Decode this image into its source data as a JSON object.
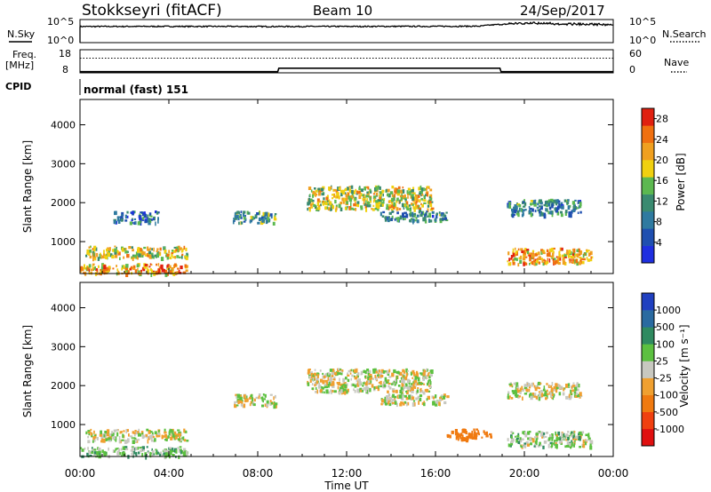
{
  "header": {
    "radar": "Stokkseyri (fitACF)",
    "beam": "Beam 10",
    "date": "24/Sep/2017"
  },
  "noise_panel": {
    "left_label": "N.Sky",
    "right_label": "N.Search",
    "left_ticks": [
      "10^5",
      "10^0"
    ],
    "right_ticks": [
      "10^5",
      "10^0"
    ]
  },
  "freq_panel": {
    "left_label_line1": "Freq.",
    "left_label_line2": "[MHz]",
    "right_label": "Nave",
    "left_ticks": [
      "18",
      "8"
    ],
    "right_ticks": [
      "60",
      "0"
    ]
  },
  "cpid": {
    "label": "CPID",
    "value": "normal (fast) 151"
  },
  "power_panel": {
    "ylabel": "Slant Range [km]",
    "yticks": [
      "1000",
      "2000",
      "3000",
      "4000"
    ],
    "colorbar_label": "Power [dB]",
    "colorbar_ticks": [
      "4",
      "8",
      "12",
      "16",
      "20",
      "24",
      "28"
    ],
    "colors": [
      "#1f2fe0",
      "#1f4fb0",
      "#2f7aa0",
      "#3a8a70",
      "#5cb850",
      "#f0d010",
      "#f0a020",
      "#f07010",
      "#e02010"
    ]
  },
  "velocity_panel": {
    "ylabel": "Slant Range [km]",
    "yticks": [
      "1000",
      "2000",
      "3000",
      "4000"
    ],
    "colorbar_label": "Velocity [m s⁻¹]",
    "colorbar_ticks": [
      "1000",
      "500",
      "100",
      "25",
      "-25",
      "-100",
      "-500",
      "-1000"
    ],
    "colors": [
      "#2040c0",
      "#2a6aa0",
      "#2f8a60",
      "#5cc040",
      "#c8c8c0",
      "#f0a030",
      "#f07a10",
      "#f04010",
      "#e01010"
    ]
  },
  "time_axis": {
    "label": "Time UT",
    "ticks": [
      "00:00",
      "04:00",
      "08:00",
      "12:00",
      "16:00",
      "20:00",
      "00:00"
    ]
  },
  "chart_data": [
    {
      "type": "line",
      "title": "N.Sky / N.Search",
      "x_range_hours": [
        0,
        24
      ],
      "yscale": "log",
      "ylim": [
        "10^0",
        "10^5"
      ],
      "series": [
        {
          "name": "N.Sky",
          "x": [
            0,
            4,
            8,
            12,
            16,
            18,
            19,
            20,
            22,
            24
          ],
          "values": [
            3000,
            3200,
            3000,
            3100,
            3300,
            3500,
            9000,
            12000,
            8000,
            6000
          ]
        }
      ]
    },
    {
      "type": "line",
      "title": "Freq. / Nave",
      "x_range_hours": [
        0,
        24
      ],
      "series": [
        {
          "name": "Freq.",
          "x": [
            0,
            8.9,
            8.95,
            18.9,
            18.95,
            24
          ],
          "values": [
            8.5,
            8.5,
            10,
            10,
            8.5,
            8.5
          ]
        },
        {
          "name": "Nave",
          "x": [
            0,
            24
          ],
          "values": [
            38,
            38
          ]
        }
      ]
    },
    {
      "type": "heatmap",
      "title": "Power",
      "x_range_hours": [
        0,
        24
      ],
      "ylim_km": [
        180,
        4650
      ],
      "colorbar_unit": "dB",
      "colorbar_range": [
        0,
        30
      ],
      "regions": [
        {
          "t0": 0.0,
          "t1": 4.8,
          "r0": 180,
          "r1": 450,
          "value": 22
        },
        {
          "t0": 0.2,
          "t1": 4.8,
          "r0": 600,
          "r1": 900,
          "value": 18
        },
        {
          "t0": 1.5,
          "t1": 3.5,
          "r0": 1500,
          "r1": 1800,
          "value": 8
        },
        {
          "t0": 6.8,
          "t1": 8.8,
          "r0": 1500,
          "r1": 1800,
          "value": 12
        },
        {
          "t0": 10.2,
          "t1": 15.8,
          "r0": 1850,
          "r1": 2450,
          "value": 18
        },
        {
          "t0": 13.5,
          "t1": 16.5,
          "r0": 1550,
          "r1": 1800,
          "value": 10
        },
        {
          "t0": 19.2,
          "t1": 23.0,
          "r0": 450,
          "r1": 850,
          "value": 22
        },
        {
          "t0": 19.2,
          "t1": 22.5,
          "r0": 1700,
          "r1": 2100,
          "value": 10
        }
      ]
    },
    {
      "type": "heatmap",
      "title": "Velocity",
      "x_range_hours": [
        0,
        24
      ],
      "ylim_km": [
        180,
        4650
      ],
      "colorbar_unit": "m s-1",
      "colorbar_range": [
        -1000,
        1000
      ],
      "regions": [
        {
          "t0": 0.0,
          "t1": 4.8,
          "r0": 200,
          "r1": 450,
          "value": 60
        },
        {
          "t0": 0.2,
          "t1": 4.8,
          "r0": 600,
          "r1": 900,
          "value": 0
        },
        {
          "t0": 6.8,
          "t1": 8.8,
          "r0": 1500,
          "r1": 1800,
          "value": 0
        },
        {
          "t0": 10.2,
          "t1": 15.8,
          "r0": 1850,
          "r1": 2450,
          "value": 0
        },
        {
          "t0": 13.5,
          "t1": 16.5,
          "r0": 1550,
          "r1": 1800,
          "value": 0
        },
        {
          "t0": 16.5,
          "t1": 18.5,
          "r0": 650,
          "r1": 900,
          "value": -300
        },
        {
          "t0": 19.2,
          "t1": 23.0,
          "r0": 450,
          "r1": 850,
          "value": 40
        },
        {
          "t0": 19.2,
          "t1": 22.5,
          "r0": 1700,
          "r1": 2100,
          "value": 0
        }
      ]
    }
  ]
}
